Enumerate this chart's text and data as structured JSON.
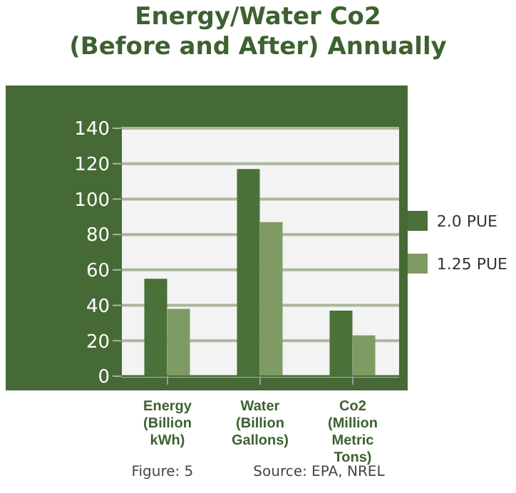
{
  "chart_data": {
    "type": "bar",
    "title": "Energy/Water Co2\n(Before and After) Annually",
    "categories": [
      "Energy (Billion kWh)",
      "Water (Billion Gallons)",
      "Co2 (Million Metric Tons)"
    ],
    "series": [
      {
        "name": "2.0 PUE",
        "color": "#4a7138",
        "values": [
          55,
          117,
          37
        ]
      },
      {
        "name": "1.25 PUE",
        "color": "#7f9b64",
        "values": [
          38,
          87,
          23
        ]
      }
    ],
    "ylim": [
      0,
      140
    ],
    "yticks": [
      0,
      20,
      40,
      60,
      80,
      100,
      120,
      140
    ],
    "grid": "y",
    "legend": "right",
    "annotations": [
      "Figure: 5",
      "Source: EPA, NREL"
    ]
  }
}
